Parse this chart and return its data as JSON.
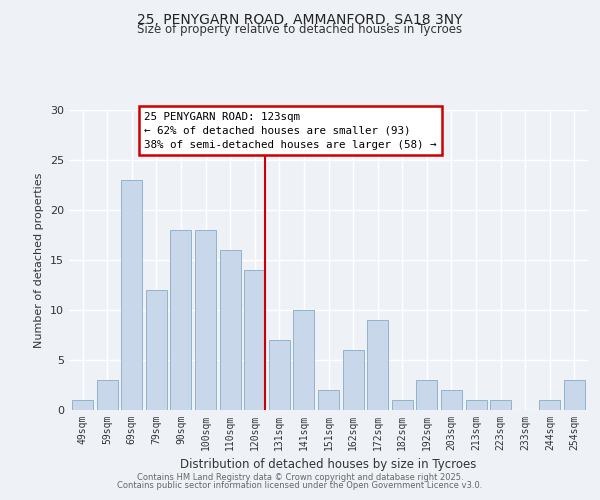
{
  "title": "25, PENYGARN ROAD, AMMANFORD, SA18 3NY",
  "subtitle": "Size of property relative to detached houses in Tycroes",
  "xlabel": "Distribution of detached houses by size in Tycroes",
  "ylabel": "Number of detached properties",
  "bar_labels": [
    "49sqm",
    "59sqm",
    "69sqm",
    "79sqm",
    "90sqm",
    "100sqm",
    "110sqm",
    "120sqm",
    "131sqm",
    "141sqm",
    "151sqm",
    "162sqm",
    "172sqm",
    "182sqm",
    "192sqm",
    "203sqm",
    "213sqm",
    "223sqm",
    "233sqm",
    "244sqm",
    "254sqm"
  ],
  "bar_values": [
    1,
    3,
    23,
    12,
    18,
    18,
    16,
    14,
    7,
    10,
    2,
    6,
    9,
    1,
    3,
    2,
    1,
    1,
    0,
    1,
    3
  ],
  "bar_color": "#c8d8ea",
  "bar_edgecolor": "#90b4cc",
  "vline_color": "#cc0000",
  "annotation_title": "25 PENYGARN ROAD: 123sqm",
  "annotation_line1": "← 62% of detached houses are smaller (93)",
  "annotation_line2": "38% of semi-detached houses are larger (58) →",
  "annotation_box_edgecolor": "#cc0000",
  "annotation_fill": "#ffffff",
  "ylim": [
    0,
    30
  ],
  "yticks": [
    0,
    5,
    10,
    15,
    20,
    25,
    30
  ],
  "bg_color": "#eef2f7",
  "grid_color": "#ffffff",
  "footer1": "Contains HM Land Registry data © Crown copyright and database right 2025.",
  "footer2": "Contains public sector information licensed under the Open Government Licence v3.0."
}
